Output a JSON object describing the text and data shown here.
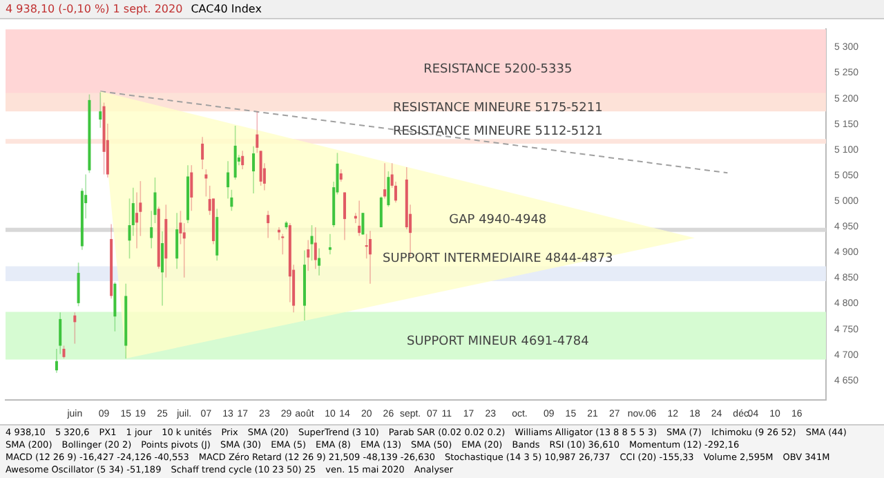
{
  "chart_data": {
    "type": "candlestick",
    "title": "CAC40 Index",
    "subtitle": "4 938,10 (-0,10 %) 1 sept. 2020",
    "x": [
      "2020-05-27",
      "2020-05-28",
      "2020-05-29",
      "2020-06-01",
      "2020-06-02",
      "2020-06-03",
      "2020-06-04",
      "2020-06-05",
      "2020-06-08",
      "2020-06-09",
      "2020-06-10",
      "2020-06-11",
      "2020-06-12",
      "2020-06-15",
      "2020-06-16",
      "2020-06-17",
      "2020-06-18",
      "2020-06-19",
      "2020-06-22",
      "2020-06-23",
      "2020-06-24",
      "2020-06-25",
      "2020-06-26",
      "2020-06-29",
      "2020-06-30",
      "2020-07-01",
      "2020-07-02",
      "2020-07-03",
      "2020-07-06",
      "2020-07-07",
      "2020-07-08",
      "2020-07-09",
      "2020-07-10",
      "2020-07-13",
      "2020-07-14",
      "2020-07-15",
      "2020-07-16",
      "2020-07-17",
      "2020-07-20",
      "2020-07-21",
      "2020-07-22",
      "2020-07-23",
      "2020-07-24",
      "2020-07-27",
      "2020-07-28",
      "2020-07-29",
      "2020-07-30",
      "2020-07-31",
      "2020-08-03",
      "2020-08-04",
      "2020-08-05",
      "2020-08-06",
      "2020-08-07",
      "2020-08-10",
      "2020-08-11",
      "2020-08-12",
      "2020-08-13",
      "2020-08-14",
      "2020-08-17",
      "2020-08-18",
      "2020-08-19",
      "2020-08-20",
      "2020-08-21",
      "2020-08-24",
      "2020-08-25",
      "2020-08-26",
      "2020-08-27",
      "2020-08-28",
      "2020-08-31",
      "2020-09-01"
    ],
    "ohlc": [
      [
        4670,
        4712,
        4665,
        4688
      ],
      [
        4718,
        4783,
        4702,
        4770
      ],
      [
        4712,
        4718,
        4693,
        4696
      ],
      [
        4777,
        4783,
        4722,
        4764
      ],
      [
        4801,
        4880,
        4795,
        4860
      ],
      [
        4912,
        5025,
        4905,
        5020
      ],
      [
        4996,
        5052,
        4966,
        5012
      ],
      [
        5060,
        5208,
        5055,
        5197
      ],
      [
        5159,
        5212,
        5143,
        5175
      ],
      [
        5185,
        5192,
        5052,
        5096
      ],
      [
        5119,
        5151,
        5046,
        5052
      ],
      [
        4926,
        4955,
        4810,
        4815
      ],
      [
        4775,
        4842,
        4746,
        4839
      ],
      [
        4718,
        4839,
        4693,
        4815
      ],
      [
        4923,
        5005,
        4888,
        4953
      ],
      [
        4953,
        5026,
        4932,
        4996
      ],
      [
        4977,
        5017,
        4908,
        4958
      ],
      [
        4997,
        5039,
        4932,
        4979
      ],
      [
        4928,
        4981,
        4908,
        4949
      ],
      [
        4973,
        5046,
        4957,
        5017
      ],
      [
        4985,
        4989,
        4868,
        4872
      ],
      [
        4861,
        4941,
        4796,
        4918
      ],
      [
        4965,
        4993,
        4851,
        4888
      ],
      [
        4888,
        4977,
        4868,
        4945
      ],
      [
        4958,
        4981,
        4916,
        4937
      ],
      [
        4939,
        4957,
        4851,
        4927
      ],
      [
        4963,
        5070,
        4957,
        5048
      ],
      [
        5056,
        5070,
        4981,
        5007
      ],
      [
        5112,
        5125,
        5062,
        5081
      ],
      [
        5052,
        5062,
        5009,
        5044
      ],
      [
        5004,
        5030,
        4973,
        4981
      ],
      [
        5005,
        5005,
        4916,
        4922
      ],
      [
        4894,
        4985,
        4884,
        4969
      ],
      [
        5027,
        5078,
        5005,
        5056
      ],
      [
        4989,
        5022,
        4981,
        5007
      ],
      [
        5046,
        5147,
        5042,
        5108
      ],
      [
        5077,
        5090,
        5070,
        5085
      ],
      [
        5088,
        5098,
        5062,
        5070
      ],
      [
        5058,
        5107,
        5015,
        5093
      ],
      [
        5130,
        5174,
        5094,
        5104
      ],
      [
        5098,
        5098,
        5030,
        5038
      ],
      [
        5064,
        5074,
        5021,
        5034
      ],
      [
        4973,
        4981,
        4928,
        4957
      ],
      [
        4944,
        4949,
        4924,
        4939
      ],
      [
        4931,
        4936,
        4896,
        4928
      ],
      [
        4949,
        4961,
        4945,
        4958
      ],
      [
        4953,
        4957,
        4803,
        4853
      ],
      [
        4866,
        4876,
        4783,
        4796
      ],
      [
        4796,
        4904,
        4767,
        4876
      ],
      [
        4906,
        4924,
        4864,
        4890
      ],
      [
        4916,
        4953,
        4884,
        4932
      ],
      [
        4919,
        4949,
        4868,
        4885
      ],
      [
        4874,
        4908,
        4855,
        4889
      ],
      [
        4905,
        4936,
        4896,
        4910
      ],
      [
        4953,
        5038,
        4949,
        5027
      ],
      [
        5017,
        5094,
        5013,
        5073
      ],
      [
        5054,
        5062,
        5038,
        5042
      ],
      [
        5017,
        5017,
        4924,
        4965
      ],
      [
        4971,
        4977,
        4957,
        4966
      ],
      [
        4952,
        5001,
        4932,
        4938
      ],
      [
        4935,
        4977,
        4934,
        4977
      ],
      [
        4914,
        4936,
        4888,
        4911
      ],
      [
        4926,
        4942,
        4839,
        4896
      ],
      [
        4949,
        5009,
        4949,
        5007
      ],
      [
        5023,
        5074,
        5005,
        5009
      ],
      [
        4992,
        5058,
        4989,
        5047
      ],
      [
        5052,
        5074,
        5026,
        5030
      ],
      [
        5030,
        5038,
        4997,
        5001
      ],
      [
        5042,
        5066,
        4945,
        4949
      ],
      [
        4975,
        4993,
        4892,
        4938
      ]
    ],
    "colors": [
      "#3ec43e",
      "#3ec43e",
      "#e05a64",
      "#e05a64",
      "#3ec43e",
      "#3ec43e",
      "#3ec43e",
      "#3ec43e",
      "#3ec43e",
      "#e05a64",
      "#e05a64",
      "#e05a64",
      "#3ec43e",
      "#3ec43e",
      "#3ec43e",
      "#3ec43e",
      "#e05a64",
      "#e05a64",
      "#3ec43e",
      "#3ec43e",
      "#e05a64",
      "#3ec43e",
      "#e05a64",
      "#3ec43e",
      "#e05a64",
      "#e05a64",
      "#3ec43e",
      "#e05a64",
      "#e05a64",
      "#e05a64",
      "#e05a64",
      "#e05a64",
      "#3ec43e",
      "#3ec43e",
      "#3ec43e",
      "#3ec43e",
      "#3ec43e",
      "#e05a64",
      "#3ec43e",
      "#e05a64",
      "#e05a64",
      "#e05a64",
      "#e05a64",
      "#e05a64",
      "#e05a64",
      "#3ec43e",
      "#e05a64",
      "#e05a64",
      "#3ec43e",
      "#e05a64",
      "#3ec43e",
      "#e05a64",
      "#3ec43e",
      "#3ec43e",
      "#3ec43e",
      "#3ec43e",
      "#e05a64",
      "#e05a64",
      "#e05a64",
      "#e05a64",
      "#3ec43e",
      "#e05a64",
      "#e05a64",
      "#3ec43e",
      "#e05a64",
      "#3ec43e",
      "#e05a64",
      "#e05a64",
      "#e05a64",
      "#e05a64"
    ],
    "series": [
      {
        "type": "area",
        "color": "#ffffc8",
        "x": [
          "2020-06-08",
          "2020-06-15",
          "2020-11-18"
        ],
        "values": [
          5214,
          4693,
          4928
        ]
      },
      {
        "type": "line",
        "color": "#a0a0a0",
        "line_style": "dashed",
        "marker": "none",
        "x": [
          "2020-06-08",
          "2020-11-27"
        ],
        "values": [
          5214,
          5055
        ]
      }
    ],
    "bands": [
      {
        "axis": "y",
        "from": 5200,
        "to": 5335,
        "label": "RESISTANCE 5200-5335",
        "color": "#ffd6d6"
      },
      {
        "axis": "y",
        "from": 5175,
        "to": 5211,
        "label": "RESISTANCE MINEURE 5175-5211",
        "color": "#fde2d8"
      },
      {
        "axis": "y",
        "from": 5112,
        "to": 5121,
        "label": "RESISTANCE MINEURE 5112-5121",
        "color": "#fde4dc"
      },
      {
        "axis": "y",
        "from": 4940,
        "to": 4948,
        "label": "GAP 4940-4948",
        "color": "#d8d8d8"
      },
      {
        "axis": "y",
        "from": 4844,
        "to": 4873,
        "label": "SUPPORT INTERMEDIAIRE 4844-4873",
        "color": "#e6ecf8"
      },
      {
        "axis": "y",
        "from": 4691,
        "to": 4784,
        "label": "SUPPORT MINEUR 4691-4784",
        "color": "#d6fbd2"
      }
    ],
    "xlim": [
      "2020-05-13",
      "2020-12-24"
    ],
    "xticks": [
      {
        "value": "2020-06-01",
        "label": "juin"
      },
      {
        "value": "2020-06-09",
        "label": "09"
      },
      {
        "value": "2020-06-15",
        "label": "15"
      },
      {
        "value": "2020-06-19",
        "label": "19"
      },
      {
        "value": "2020-06-25",
        "label": "25"
      },
      {
        "value": "2020-07-01",
        "label": "juil."
      },
      {
        "value": "2020-07-07",
        "label": "07"
      },
      {
        "value": "2020-07-13",
        "label": "13"
      },
      {
        "value": "2020-07-17",
        "label": "17"
      },
      {
        "value": "2020-07-23",
        "label": "23"
      },
      {
        "value": "2020-07-29",
        "label": "29"
      },
      {
        "value": "2020-08-03",
        "label": "août"
      },
      {
        "value": "2020-08-10",
        "label": "10"
      },
      {
        "value": "2020-08-14",
        "label": "14"
      },
      {
        "value": "2020-08-20",
        "label": "20"
      },
      {
        "value": "2020-08-26",
        "label": "26"
      },
      {
        "value": "2020-09-01",
        "label": "sept."
      },
      {
        "value": "2020-09-07",
        "label": "07"
      },
      {
        "value": "2020-09-11",
        "label": "11"
      },
      {
        "value": "2020-09-17",
        "label": "17"
      },
      {
        "value": "2020-09-23",
        "label": "23"
      },
      {
        "value": "2020-10-01",
        "label": "oct."
      },
      {
        "value": "2020-10-09",
        "label": "09"
      },
      {
        "value": "2020-10-15",
        "label": "15"
      },
      {
        "value": "2020-10-21",
        "label": "21"
      },
      {
        "value": "2020-10-27",
        "label": "27"
      },
      {
        "value": "2020-11-02",
        "label": "nov."
      },
      {
        "value": "2020-11-06",
        "label": "06"
      },
      {
        "value": "2020-11-12",
        "label": "12"
      },
      {
        "value": "2020-11-18",
        "label": "18"
      },
      {
        "value": "2020-11-24",
        "label": "24"
      },
      {
        "value": "2020-12-01",
        "label": "déc."
      },
      {
        "value": "2020-12-04",
        "label": "04"
      },
      {
        "value": "2020-12-10",
        "label": "10"
      },
      {
        "value": "2020-12-16",
        "label": "16"
      }
    ],
    "ylim": [
      4612,
      5335
    ],
    "yticks": [
      {
        "value": 4650,
        "label": "4 650"
      },
      {
        "value": 4700,
        "label": "4 700"
      },
      {
        "value": 4750,
        "label": "4 750"
      },
      {
        "value": 4800,
        "label": "4 800"
      },
      {
        "value": 4850,
        "label": "4 850"
      },
      {
        "value": 4900,
        "label": "4 900"
      },
      {
        "value": 4950,
        "label": "4 950"
      },
      {
        "value": 5000,
        "label": "5 000"
      },
      {
        "value": 5050,
        "label": "5 050"
      },
      {
        "value": 5100,
        "label": "5 100"
      },
      {
        "value": 5150,
        "label": "5 150"
      },
      {
        "value": 5200,
        "label": "5 200"
      },
      {
        "value": 5250,
        "label": "5 250"
      },
      {
        "value": 5300,
        "label": "5 300"
      }
    ],
    "annotations": [
      "4 938,10",
      "5 320,6",
      "PX1",
      "1 jour",
      "10 k unités",
      "Prix",
      "SMA (20)",
      "SuperTrend (3 10)",
      "Parab SAR (0.02 0.02 0.2)",
      "Williams Alligator (13 8 8 5 5 3)",
      "SMA (7)",
      "Ichimoku (9 26 52)",
      "SMA (44)",
      "SMA (200)",
      "Bollinger (20 2)",
      "Points pivots (J)",
      "SMA (30)",
      "EMA (5)",
      "EMA (8)",
      "EMA (13)",
      "SMA (50)",
      "EMA (20)",
      "Bands",
      "RSI (10) 36,610",
      "Momentum (12) -292,16",
      "MACD (12 26 9) -16,427 -24,126 -40,553",
      "MACD Zéro Retard (12 26 9) 21,509 -48,139 -26,630",
      "Stochastique (14 3 5) 10,987 26,737",
      "CCI (20) -155,33",
      "Volume 2,595M",
      "OBV 341M",
      "Awesome Oscillator (5 34) -51,189",
      "Schaff trend cycle (10 23 50) 25",
      "ven. 15 mai 2020",
      "Analyser"
    ],
    "grid": false,
    "legend": false
  }
}
